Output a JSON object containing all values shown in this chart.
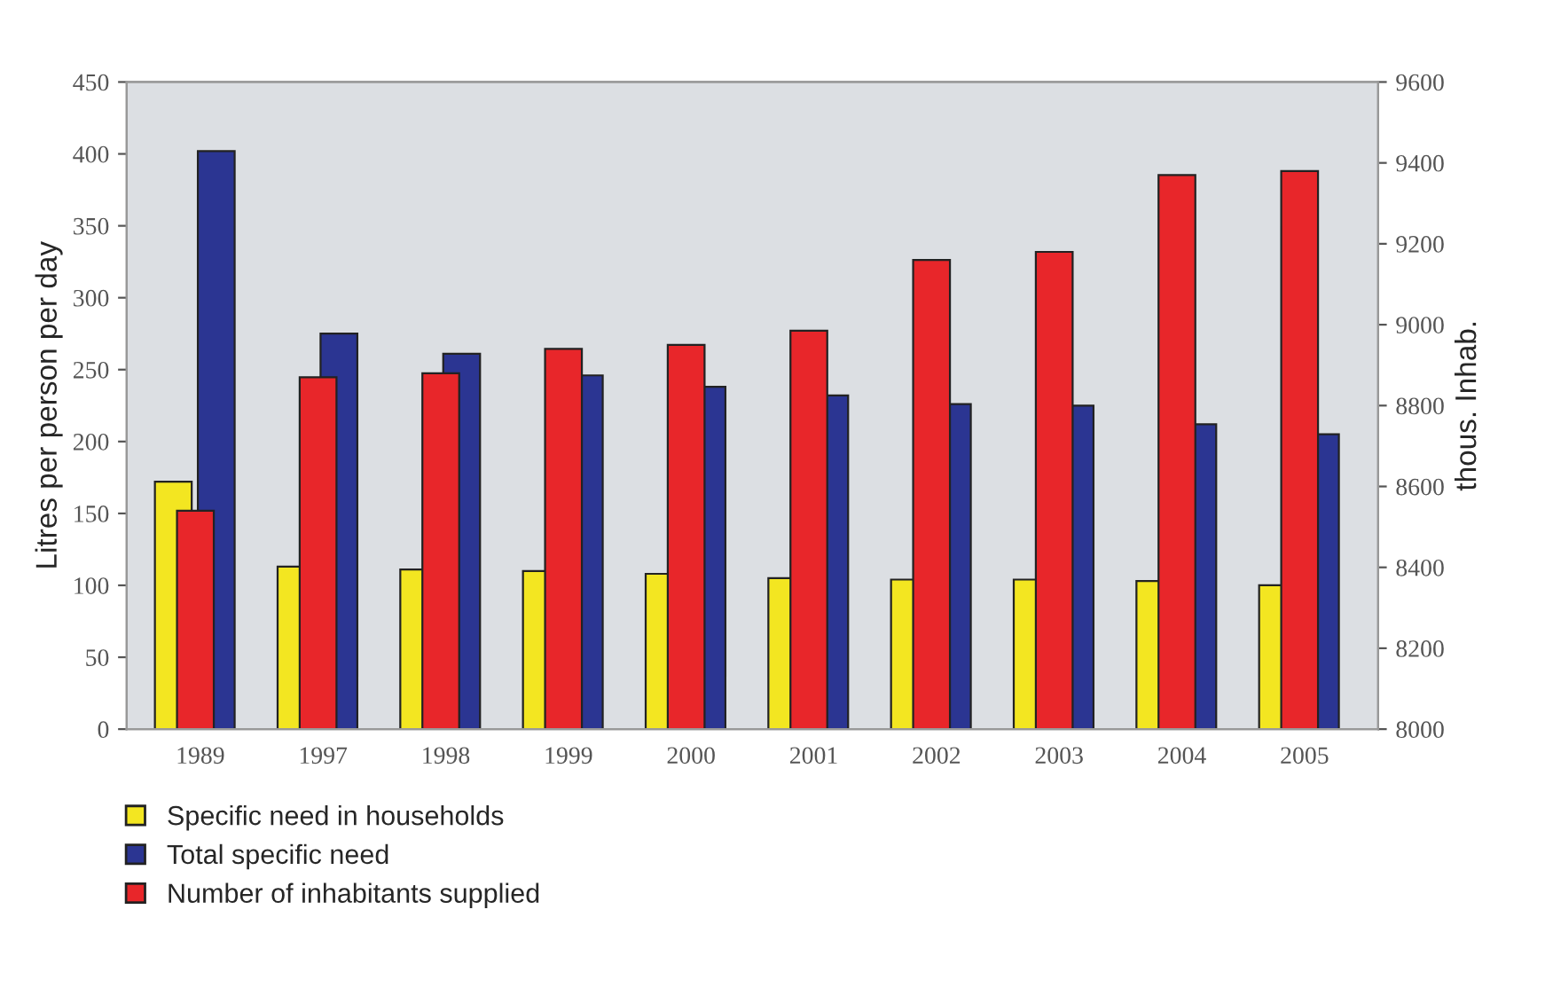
{
  "chart_data": {
    "type": "bar",
    "ylabel": "Litres per person per day",
    "y2label": "thous. Inhab.",
    "categories": [
      "1989",
      "1997",
      "1998",
      "1999",
      "2000",
      "2001",
      "2002",
      "2003",
      "2004",
      "2005"
    ],
    "series": [
      {
        "name": "Specific need in households",
        "color": "#f3e621",
        "values": [
          172,
          113,
          111,
          110,
          108,
          105,
          104,
          104,
          103,
          100
        ]
      },
      {
        "name": "Total specific need",
        "color": "#2b3592",
        "values": [
          402,
          275,
          261,
          246,
          238,
          232,
          226,
          225,
          212,
          205
        ]
      },
      {
        "name": "Number of inhabitants supplied",
        "color": "#e8262a",
        "axis": "y2",
        "values": [
          8540,
          8870,
          8880,
          8940,
          8950,
          8985,
          9160,
          9180,
          9370,
          9380
        ]
      }
    ],
    "ylim": [
      0,
      450
    ],
    "yticks": [
      0,
      50,
      100,
      150,
      200,
      250,
      300,
      350,
      400,
      450
    ],
    "y2lim": [
      8000,
      9600
    ],
    "y2ticks": [
      8000,
      8200,
      8400,
      8600,
      8800,
      9000,
      9200,
      9400,
      9600
    ],
    "grid": false,
    "legend": "bottom"
  }
}
